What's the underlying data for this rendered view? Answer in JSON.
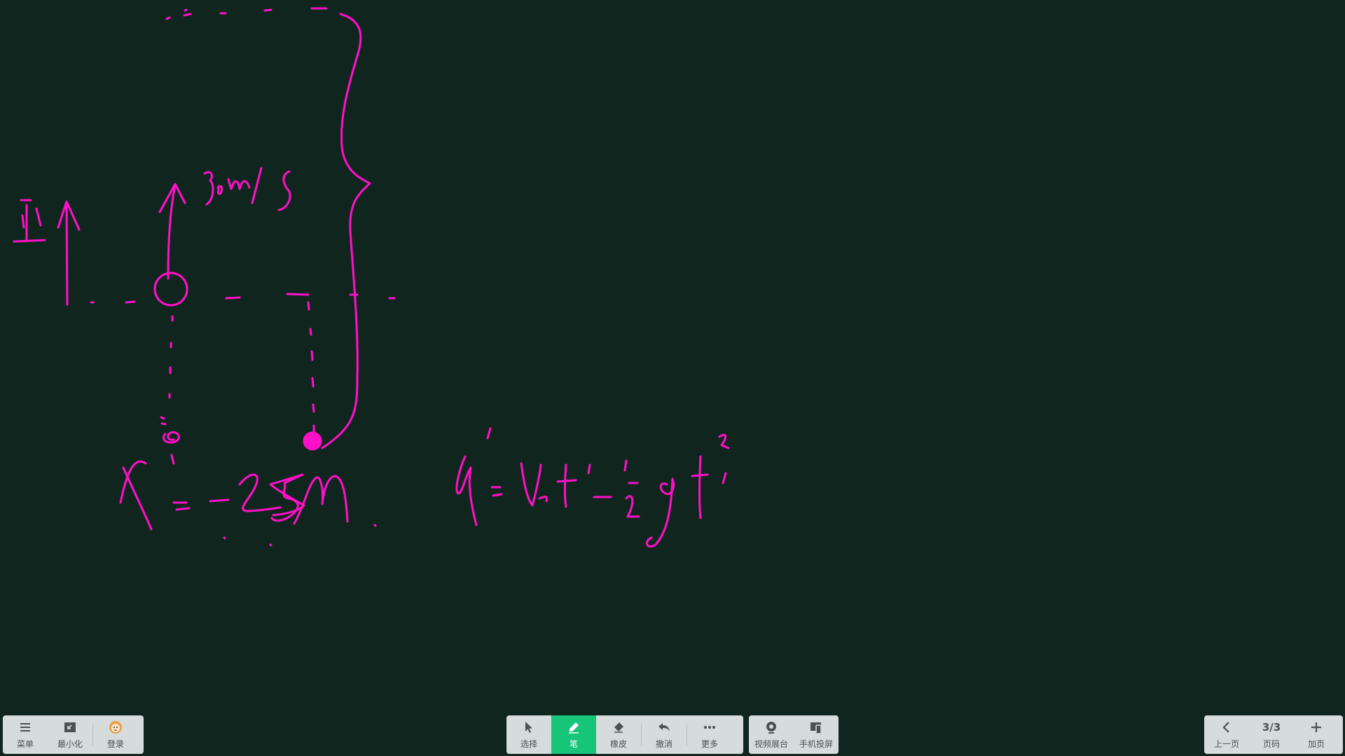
{
  "board": {
    "ink_color": "#ff10c8",
    "background": "#11251f",
    "texts": {
      "positive_label": "正",
      "velocity_label": "30m/s",
      "displacement_eq": "x′=−25m",
      "formula": "x′=v₀t′−½gt′²"
    }
  },
  "left_toolbar": [
    {
      "id": "menu",
      "label": "菜单",
      "icon": "menu-icon"
    },
    {
      "id": "minimize",
      "label": "最小化",
      "icon": "minimize-icon"
    },
    {
      "id": "login",
      "label": "登录",
      "icon": "avatar-icon"
    }
  ],
  "center_toolbar": [
    {
      "id": "select",
      "label": "选择",
      "icon": "cursor-icon"
    },
    {
      "id": "pen",
      "label": "笔",
      "icon": "pen-icon",
      "active": true
    },
    {
      "id": "eraser",
      "label": "橡皮",
      "icon": "eraser-icon"
    },
    {
      "id": "undo",
      "label": "撤消",
      "icon": "undo-icon"
    },
    {
      "id": "more",
      "label": "更多",
      "icon": "more-icon"
    }
  ],
  "media_toolbar": [
    {
      "id": "video_booth",
      "label": "视频展台",
      "icon": "camera-icon"
    },
    {
      "id": "phone_cast",
      "label": "手机投屏",
      "icon": "phone-cast-icon"
    }
  ],
  "page_toolbar": {
    "prev_label": "上一页",
    "page_display": "3/3",
    "page_label": "页码",
    "add_label": "加页"
  },
  "colors": {
    "active": "#16c47a",
    "toolbar_bg": "#d6dbdb",
    "toolbar_text": "#4a5352"
  }
}
